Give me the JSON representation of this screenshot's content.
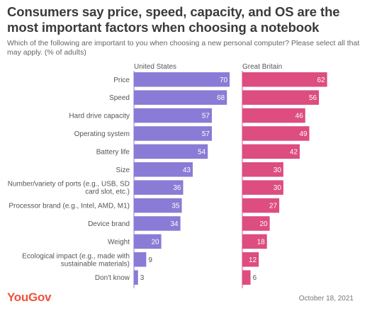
{
  "title": "Consumers say price, speed, capacity, and OS are the most important factors when choosing a notebook",
  "subtitle": "Which of the following are important to you when choosing a new personal computer? Please select all that may apply. (% of adults)",
  "brand": "YouGov",
  "date": "October 18, 2021",
  "colors": {
    "us": "#8a7bd6",
    "gb": "#dd4d7f"
  },
  "chart_data": {
    "type": "bar",
    "orientation": "horizontal",
    "categories": [
      [
        "Price"
      ],
      [
        "Speed"
      ],
      [
        "Hard drive capacity"
      ],
      [
        "Operating system"
      ],
      [
        "Battery life"
      ],
      [
        "Size"
      ],
      [
        "Number/variety of ports (e.g., USB, SD",
        "card slot, etc.)"
      ],
      [
        "Processor brand (e.g., Intel, AMD, M1)"
      ],
      [
        "Device brand"
      ],
      [
        "Weight"
      ],
      [
        "Ecological impact (e.g., made with",
        "sustainable materials)"
      ],
      [
        "Don't know"
      ]
    ],
    "series": [
      {
        "name": "United States",
        "values": [
          70,
          68,
          57,
          57,
          54,
          43,
          36,
          35,
          34,
          20,
          9,
          3
        ]
      },
      {
        "name": "Great Britain",
        "values": [
          62,
          56,
          46,
          49,
          42,
          30,
          30,
          27,
          20,
          18,
          12,
          6
        ]
      }
    ]
  }
}
